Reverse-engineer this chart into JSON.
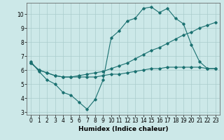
{
  "title": "",
  "xlabel": "Humidex (Indice chaleur)",
  "ylabel": "",
  "xlim": [
    -0.5,
    23.5
  ],
  "ylim": [
    2.8,
    10.8
  ],
  "xticks": [
    0,
    1,
    2,
    3,
    4,
    5,
    6,
    7,
    8,
    9,
    10,
    11,
    12,
    13,
    14,
    15,
    16,
    17,
    18,
    19,
    20,
    21,
    22,
    23
  ],
  "yticks": [
    3,
    4,
    5,
    6,
    7,
    8,
    9,
    10
  ],
  "bg_color": "#cce8e8",
  "line_color": "#1a7070",
  "line1_x": [
    0,
    1,
    2,
    3,
    4,
    5,
    6,
    7,
    8,
    9,
    10,
    11,
    12,
    13,
    14,
    15,
    16,
    17,
    18,
    19,
    20,
    21,
    22,
    23
  ],
  "line1_y": [
    6.6,
    5.9,
    5.3,
    5.0,
    4.4,
    4.2,
    3.7,
    3.2,
    3.9,
    5.3,
    8.3,
    8.8,
    9.5,
    9.7,
    10.4,
    10.5,
    10.1,
    10.4,
    9.7,
    9.3,
    7.8,
    6.6,
    6.1,
    6.1
  ],
  "line2_x": [
    0,
    1,
    2,
    3,
    4,
    5,
    6,
    7,
    8,
    9,
    10,
    11,
    12,
    13,
    14,
    15,
    16,
    17,
    18,
    19,
    20,
    21,
    22,
    23
  ],
  "line2_y": [
    6.5,
    6.0,
    5.8,
    5.6,
    5.5,
    5.5,
    5.5,
    5.5,
    5.5,
    5.6,
    5.7,
    5.7,
    5.8,
    5.9,
    6.0,
    6.1,
    6.1,
    6.2,
    6.2,
    6.2,
    6.2,
    6.2,
    6.1,
    6.1
  ],
  "line3_x": [
    0,
    1,
    2,
    3,
    4,
    5,
    6,
    7,
    8,
    9,
    10,
    11,
    12,
    13,
    14,
    15,
    16,
    17,
    18,
    19,
    20,
    21,
    22,
    23
  ],
  "line3_y": [
    6.5,
    6.0,
    5.8,
    5.6,
    5.5,
    5.5,
    5.6,
    5.7,
    5.8,
    5.9,
    6.1,
    6.3,
    6.5,
    6.8,
    7.1,
    7.4,
    7.6,
    7.9,
    8.2,
    8.5,
    8.7,
    9.0,
    9.2,
    9.4
  ],
  "marker": "D",
  "marker_size": 1.8,
  "line_width": 0.8,
  "tick_fontsize": 5.5,
  "xlabel_fontsize": 6.5,
  "grid_color": "#aacccc",
  "grid_lw": 0.5
}
